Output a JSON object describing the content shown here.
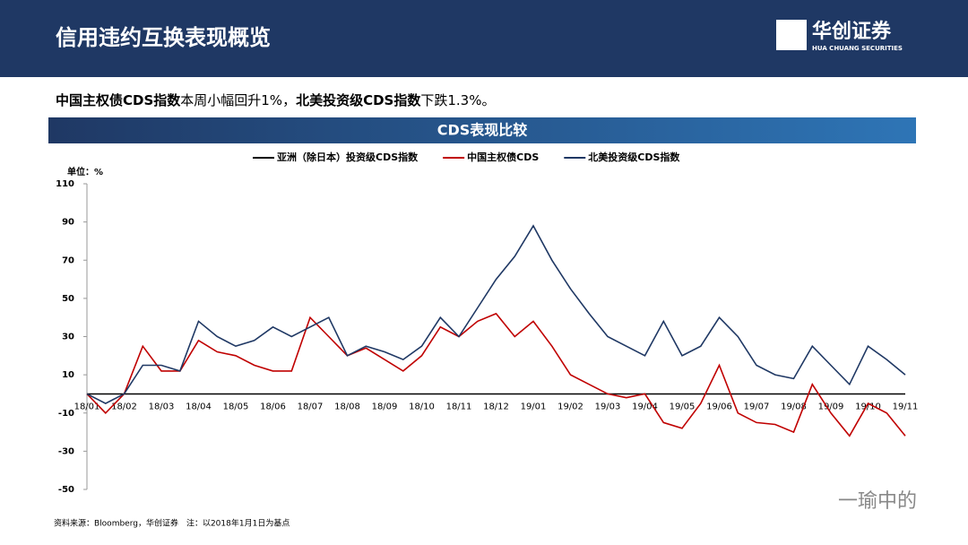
{
  "header": {
    "title": "信用违约互换表现概览",
    "logo_name": "华创证券",
    "logo_sub": "HUA CHUANG SECURITIES"
  },
  "summary": {
    "bold1": "中国主权债CDS指数",
    "text1": "本周小幅回升1%，",
    "bold2": "北美投资级CDS指数",
    "text2": "下跌1.3%。"
  },
  "band_title": "CDS表现比较",
  "source": "资料来源：Bloomberg，华创证券　注：以2018年1月1日为基点",
  "watermark": "一瑜中的",
  "chart_data": {
    "type": "line",
    "unit_label": "单位：%",
    "categories": [
      "18/01",
      null,
      "18/02",
      null,
      "18/03",
      null,
      "18/04",
      null,
      "18/05",
      null,
      "18/06",
      null,
      "18/07",
      null,
      "18/08",
      null,
      "18/09",
      null,
      "18/10",
      null,
      "18/11",
      null,
      "18/12",
      null,
      "19/01",
      null,
      "19/02",
      null,
      "19/03",
      null,
      "19/04",
      null,
      "19/05",
      null,
      "19/06",
      null,
      "19/07",
      null,
      "19/08",
      null,
      "19/09",
      null,
      "19/10",
      null,
      "19/11"
    ],
    "series": [
      {
        "name": "亚洲（除日本）投资级CDS指数",
        "color": "#000000",
        "values": [
          null,
          null,
          null,
          null,
          null,
          null,
          null,
          null,
          null,
          null,
          null,
          null,
          null,
          null,
          null,
          null,
          null,
          null,
          null,
          null,
          null,
          null,
          null,
          null,
          null,
          null,
          null,
          null,
          null,
          null,
          null,
          null,
          null,
          null,
          null,
          null,
          null,
          null,
          null,
          null,
          null,
          null,
          null,
          null,
          null
        ]
      },
      {
        "name": "中国主权债CDS",
        "color": "#c00000",
        "values": [
          0,
          -10,
          0,
          25,
          12,
          12,
          28,
          22,
          20,
          15,
          12,
          12,
          40,
          30,
          20,
          24,
          18,
          12,
          20,
          35,
          30,
          38,
          42,
          30,
          38,
          25,
          10,
          5,
          0,
          -2,
          0,
          -15,
          -18,
          -5,
          15,
          -10,
          -15,
          -16,
          -20,
          5,
          -10,
          -22,
          -5,
          -10,
          -22
        ]
      },
      {
        "name": "北美投资级CDS指数",
        "color": "#1f3864",
        "values": [
          0,
          -5,
          0,
          15,
          15,
          12,
          38,
          30,
          25,
          28,
          35,
          30,
          35,
          40,
          20,
          25,
          22,
          18,
          25,
          40,
          30,
          45,
          60,
          72,
          88,
          70,
          55,
          42,
          30,
          25,
          20,
          38,
          20,
          25,
          40,
          30,
          15,
          10,
          8,
          25,
          15,
          5,
          25,
          18,
          10
        ]
      }
    ],
    "ylim": [
      -50,
      110
    ],
    "yticks": [
      -50,
      -30,
      -10,
      10,
      30,
      50,
      70,
      90,
      110
    ]
  }
}
